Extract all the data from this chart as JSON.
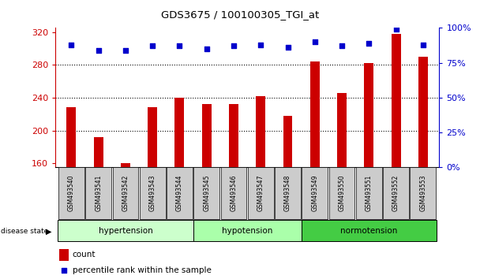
{
  "title": "GDS3675 / 100100305_TGI_at",
  "samples": [
    "GSM493540",
    "GSM493541",
    "GSM493542",
    "GSM493543",
    "GSM493544",
    "GSM493545",
    "GSM493546",
    "GSM493547",
    "GSM493548",
    "GSM493549",
    "GSM493550",
    "GSM493551",
    "GSM493552",
    "GSM493553"
  ],
  "counts": [
    228,
    192,
    160,
    228,
    240,
    232,
    232,
    242,
    218,
    284,
    246,
    282,
    318,
    290
  ],
  "percentiles": [
    88,
    84,
    84,
    87,
    87,
    85,
    87,
    88,
    86,
    90,
    87,
    89,
    99,
    88
  ],
  "groups": [
    {
      "label": "hypertension",
      "start": 0,
      "end": 5,
      "color": "#ccffcc"
    },
    {
      "label": "hypotension",
      "start": 5,
      "end": 9,
      "color": "#aaffaa"
    },
    {
      "label": "normotension",
      "start": 9,
      "end": 14,
      "color": "#44cc44"
    }
  ],
  "ylim_left": [
    155,
    325
  ],
  "yticks_left": [
    160,
    200,
    240,
    280,
    320
  ],
  "ylim_right": [
    0,
    100
  ],
  "yticks_right": [
    0,
    25,
    50,
    75,
    100
  ],
  "bar_color": "#cc0000",
  "dot_color": "#0000cc",
  "background_color": "#ffffff",
  "plot_bg_color": "#ffffff",
  "grid_color": "#000000",
  "label_bg_color": "#cccccc",
  "left_axis_color": "#cc0000",
  "right_axis_color": "#0000cc"
}
